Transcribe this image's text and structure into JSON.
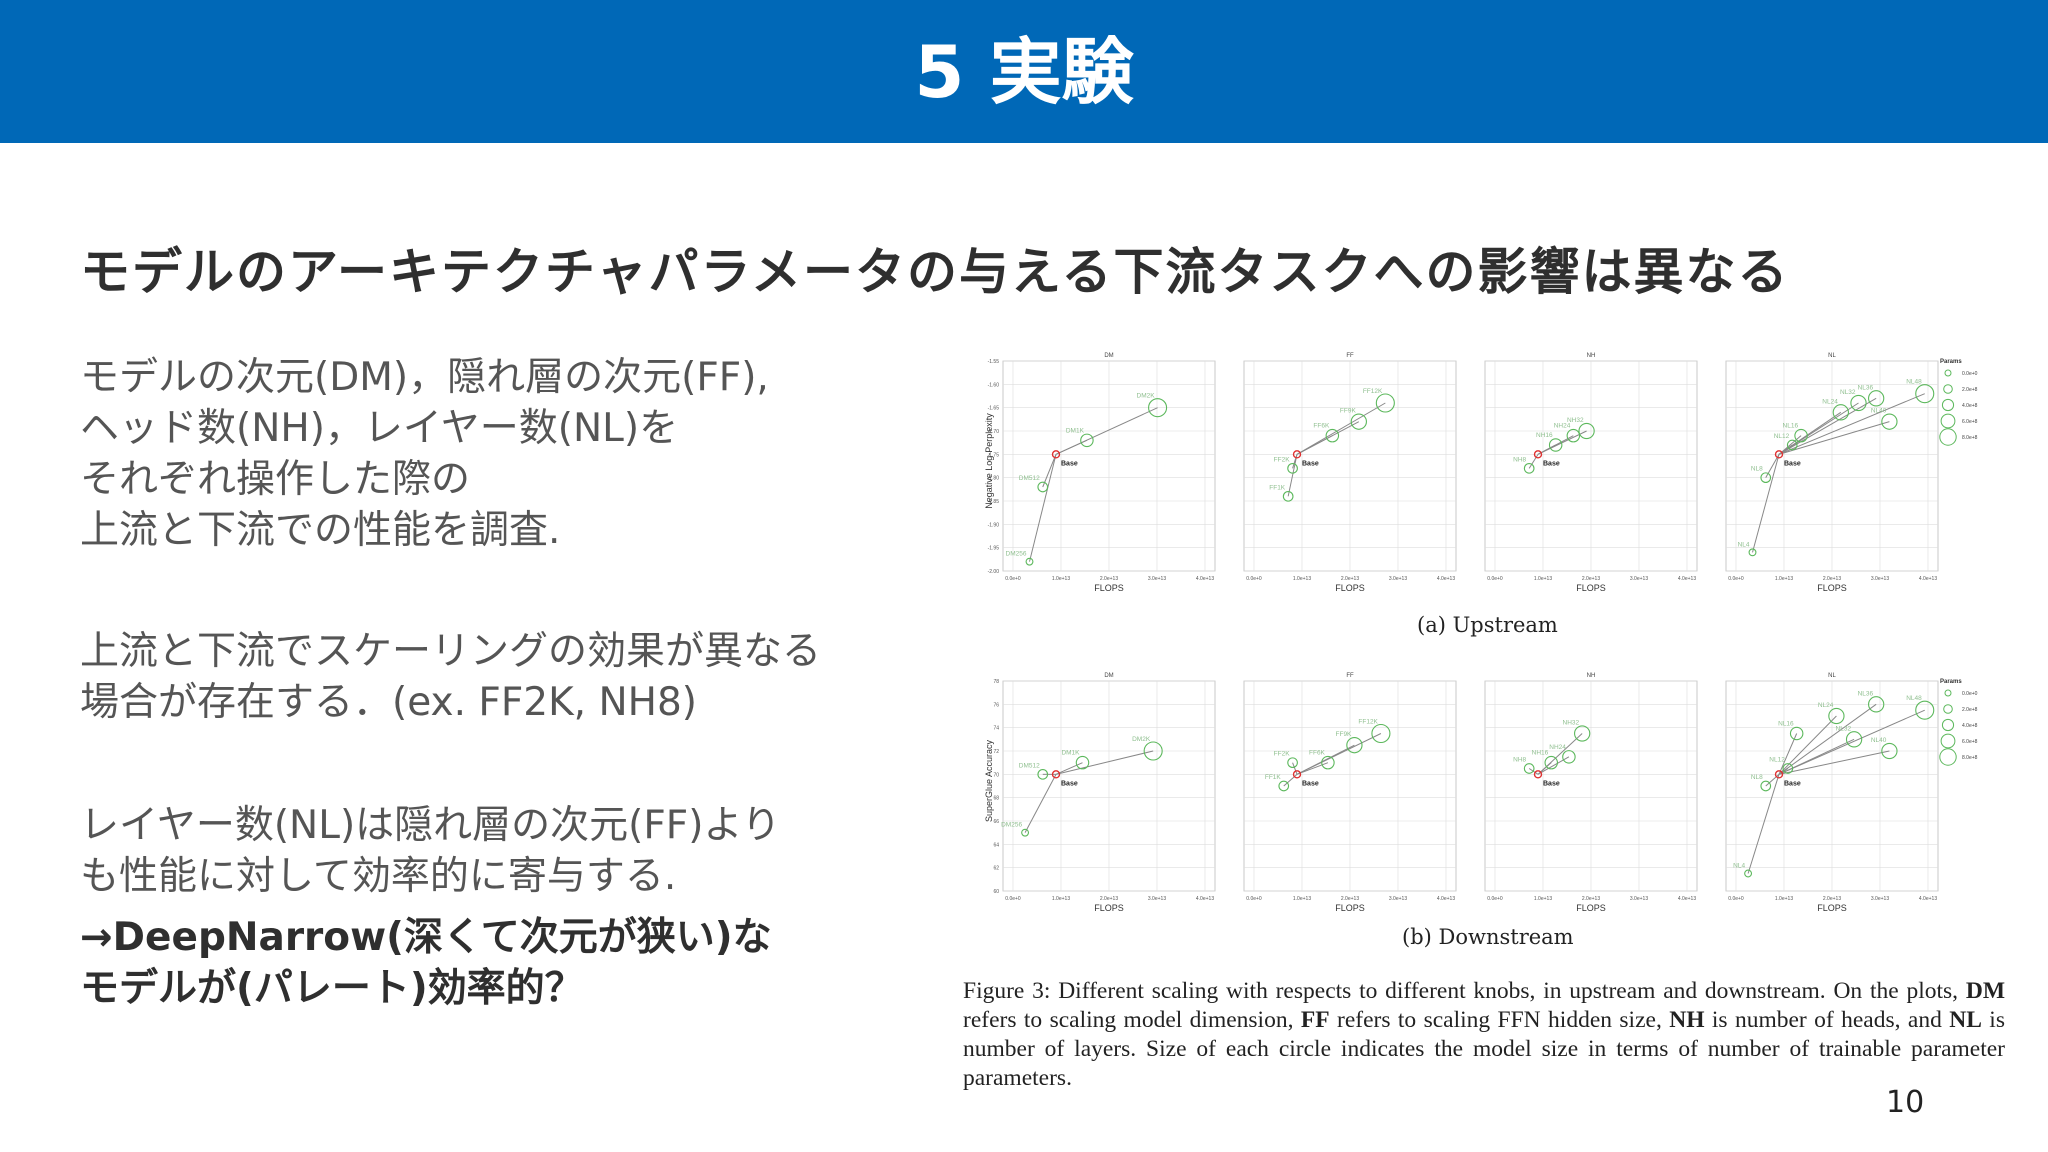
{
  "header": {
    "title": "5 実験"
  },
  "subtitle": "モデルのアーキテクチャパラメータの与える下流タスクへの影響は異なる",
  "paragraphs": {
    "p1": [
      "モデルの次元(DM)，隠れ層の次元(FF),",
      "ヘッド数(NH)，レイヤー数(NL)を",
      "それぞれ操作した際の",
      "上流と下流での性能を調査."
    ],
    "p2": [
      "上流と下流でスケーリングの効果が異なる",
      "場合が存在する．(ex. FF2K, NH8)"
    ],
    "p3": [
      "レイヤー数(NL)は隠れ層の次元(FF)より",
      "も性能に対して効率的に寄与する."
    ],
    "p4": [
      "→DeepNarrow(深くて次元が狭い)な",
      "モデルが(パレート)効率的？"
    ]
  },
  "figure": {
    "caption_a": "(a) Upstream",
    "caption_b": "(b) Downstream",
    "caption": {
      "prefix": "Figure 3: Different scaling with respects to different knobs, in upstream and downstream. On the plots, ",
      "dm": "DM",
      "t1": " refers to scaling model dimension, ",
      "ff": "FF",
      "t2": " refers to scaling FFN hidden size, ",
      "nh": "NH",
      "t3": " is number of heads, and ",
      "nl": "NL",
      "t4": " is number of layers. Size of each circle indicates the model size in terms of number of trainable parameter parameters."
    },
    "upstream": {
      "ylabel": "Negative Log-Perplexity",
      "xlabel": "FLOPS",
      "ylim": [
        -2.0,
        -1.55
      ],
      "yticks": [
        "-1.55",
        "-1.60",
        "-1.65",
        "-1.70",
        "-1.75",
        "-1.80",
        "-1.85",
        "-1.90",
        "-1.95",
        "-2.00"
      ],
      "xticks": [
        "0.0e+0",
        "1.0e+13",
        "2.0e+13",
        "3.0e+13",
        "4.0e+13"
      ],
      "panels": [
        {
          "name": "DM",
          "base": [
            1.2,
            -1.75
          ],
          "points": [
            {
              "label": "DM256",
              "x": 0.6,
              "y": -1.98,
              "r": 1
            },
            {
              "label": "DM512",
              "x": 0.9,
              "y": -1.82,
              "r": 2
            },
            {
              "label": "DM1K",
              "x": 1.9,
              "y": -1.72,
              "r": 3
            },
            {
              "label": "DM2K",
              "x": 3.5,
              "y": -1.65,
              "r": 5
            }
          ]
        },
        {
          "name": "FF",
          "base": [
            1.2,
            -1.75
          ],
          "points": [
            {
              "label": "FF1K",
              "x": 1.0,
              "y": -1.84,
              "r": 2
            },
            {
              "label": "FF2K",
              "x": 1.1,
              "y": -1.78,
              "r": 2
            },
            {
              "label": "FF6K",
              "x": 2.0,
              "y": -1.71,
              "r": 3
            },
            {
              "label": "FF9K",
              "x": 2.6,
              "y": -1.68,
              "r": 4
            },
            {
              "label": "FF12K",
              "x": 3.2,
              "y": -1.64,
              "r": 5
            }
          ]
        },
        {
          "name": "NH",
          "base": [
            1.2,
            -1.75
          ],
          "points": [
            {
              "label": "NH8",
              "x": 1.0,
              "y": -1.78,
              "r": 2
            },
            {
              "label": "NH16",
              "x": 1.6,
              "y": -1.73,
              "r": 3
            },
            {
              "label": "NH24",
              "x": 2.0,
              "y": -1.71,
              "r": 3
            },
            {
              "label": "NH32",
              "x": 2.3,
              "y": -1.7,
              "r": 4
            }
          ]
        },
        {
          "name": "NL",
          "base": [
            1.2,
            -1.75
          ],
          "points": [
            {
              "label": "NL4",
              "x": 0.6,
              "y": -1.96,
              "r": 1
            },
            {
              "label": "NL8",
              "x": 0.9,
              "y": -1.8,
              "r": 2
            },
            {
              "label": "NL12",
              "x": 1.5,
              "y": -1.73,
              "r": 2
            },
            {
              "label": "NL16",
              "x": 1.7,
              "y": -1.71,
              "r": 3
            },
            {
              "label": "NL24",
              "x": 2.6,
              "y": -1.66,
              "r": 4
            },
            {
              "label": "NL32",
              "x": 3.0,
              "y": -1.64,
              "r": 4
            },
            {
              "label": "NL36",
              "x": 3.4,
              "y": -1.63,
              "r": 4
            },
            {
              "label": "NL40",
              "x": 3.7,
              "y": -1.68,
              "r": 4
            },
            {
              "label": "NL48",
              "x": 4.5,
              "y": -1.62,
              "r": 5
            }
          ]
        }
      ]
    },
    "downstream": {
      "ylabel": "SuperGlue Accuracy",
      "xlabel": "FLOPS",
      "ylim": [
        60,
        78
      ],
      "yticks": [
        "78",
        "76",
        "74",
        "72",
        "70",
        "68",
        "66",
        "64",
        "62",
        "60"
      ],
      "xticks": [
        "0.0e+0",
        "1.0e+13",
        "2.0e+13",
        "3.0e+13",
        "4.0e+13"
      ],
      "panels": [
        {
          "name": "DM",
          "base": [
            1.2,
            70
          ],
          "points": [
            {
              "label": "DM256",
              "x": 0.5,
              "y": 65,
              "r": 1
            },
            {
              "label": "DM512",
              "x": 0.9,
              "y": 70,
              "r": 2
            },
            {
              "label": "DM1K",
              "x": 1.8,
              "y": 71,
              "r": 3
            },
            {
              "label": "DM2K",
              "x": 3.4,
              "y": 72,
              "r": 5
            }
          ]
        },
        {
          "name": "FF",
          "base": [
            1.2,
            70
          ],
          "points": [
            {
              "label": "FF1K",
              "x": 0.9,
              "y": 69,
              "r": 2
            },
            {
              "label": "FF2K",
              "x": 1.1,
              "y": 71,
              "r": 2
            },
            {
              "label": "FF6K",
              "x": 1.9,
              "y": 71,
              "r": 3
            },
            {
              "label": "FF9K",
              "x": 2.5,
              "y": 72.5,
              "r": 4
            },
            {
              "label": "FF12K",
              "x": 3.1,
              "y": 73.5,
              "r": 5
            }
          ]
        },
        {
          "name": "NH",
          "base": [
            1.2,
            70
          ],
          "points": [
            {
              "label": "NH8",
              "x": 1.0,
              "y": 70.5,
              "r": 2
            },
            {
              "label": "NH16",
              "x": 1.5,
              "y": 71,
              "r": 3
            },
            {
              "label": "NH24",
              "x": 1.9,
              "y": 71.5,
              "r": 3
            },
            {
              "label": "NH32",
              "x": 2.2,
              "y": 73.5,
              "r": 4
            }
          ]
        },
        {
          "name": "NL",
          "base": [
            1.2,
            70
          ],
          "points": [
            {
              "label": "NL4",
              "x": 0.5,
              "y": 61.5,
              "r": 1
            },
            {
              "label": "NL8",
              "x": 0.9,
              "y": 69,
              "r": 2
            },
            {
              "label": "NL12",
              "x": 1.4,
              "y": 70.5,
              "r": 2
            },
            {
              "label": "NL16",
              "x": 1.6,
              "y": 73.5,
              "r": 3
            },
            {
              "label": "NL24",
              "x": 2.5,
              "y": 75,
              "r": 4
            },
            {
              "label": "NL32",
              "x": 2.9,
              "y": 73,
              "r": 4
            },
            {
              "label": "NL36",
              "x": 3.4,
              "y": 76,
              "r": 4
            },
            {
              "label": "NL40",
              "x": 3.7,
              "y": 72,
              "r": 4
            },
            {
              "label": "NL48",
              "x": 4.5,
              "y": 75.5,
              "r": 5
            }
          ]
        }
      ]
    },
    "base_label": "Base",
    "legend": {
      "title": "Params",
      "items": [
        "0.0e+0",
        "2.0e+8",
        "4.0e+8",
        "6.0e+8",
        "8.0e+8"
      ]
    },
    "colors": {
      "point": "#5cb85c",
      "base": "#e03030",
      "line": "#888888",
      "grid": "#dddddd"
    }
  },
  "page_number": "10"
}
